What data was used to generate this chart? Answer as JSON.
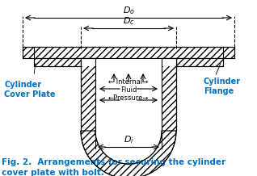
{
  "bg_color": "#ffffff",
  "line_color": "#000000",
  "blue_label_color": "#0070C0",
  "fig_caption": "Fig. 2.  Arrangements for securing the cylinder\ncover plate with bolt.",
  "caption_fontsize": 7.5,
  "label_fontsize": 7.0,
  "dim_fontsize": 8,
  "Do_label": "$D_o$",
  "Dc_label": "$D_c$",
  "Di_label": "$D_i$",
  "left_label_line1": "Cylinder",
  "left_label_line2": "Cover Plate",
  "right_label_line1": "Cylinder",
  "right_label_line2": "Flange",
  "fluid_text1": "← Internal→",
  "fluid_text2": "Fluid",
  "fluid_text3": "←Pressure→"
}
